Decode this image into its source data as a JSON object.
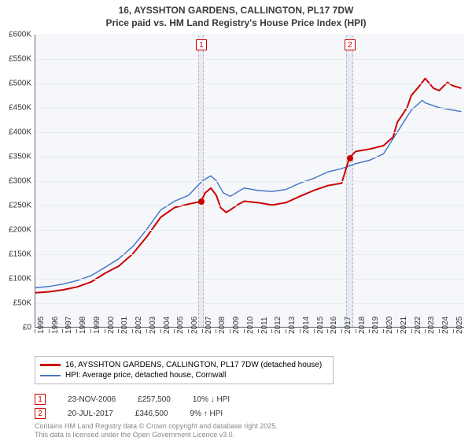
{
  "title": {
    "line1": "16, AYSSHTON GARDENS, CALLINGTON, PL17 7DW",
    "line2": "Price paid vs. HM Land Registry's House Price Index (HPI)"
  },
  "chart": {
    "type": "line",
    "background_color": "#f5f7fa",
    "grid_color": "#e8ecef",
    "axis_color": "#666666",
    "ylim": [
      0,
      600000
    ],
    "ytick_step": 50000,
    "y_tick_labels": [
      "£0",
      "£50K",
      "£100K",
      "£150K",
      "£200K",
      "£250K",
      "£300K",
      "£350K",
      "£400K",
      "£450K",
      "£500K",
      "£550K",
      "£600K"
    ],
    "xlim": [
      1995,
      2025.8
    ],
    "x_tick_labels": [
      "1995",
      "1996",
      "1997",
      "1998",
      "1999",
      "2000",
      "2001",
      "2002",
      "2003",
      "2004",
      "2005",
      "2006",
      "2007",
      "2008",
      "2009",
      "2010",
      "2011",
      "2012",
      "2013",
      "2014",
      "2015",
      "2016",
      "2017",
      "2018",
      "2019",
      "2020",
      "2021",
      "2022",
      "2023",
      "2024",
      "2025"
    ],
    "series": [
      {
        "name": "price_paid",
        "label": "16, AYSSHTON GARDENS, CALLINGTON, PL17 7DW (detached house)",
        "color": "#cc0000",
        "width": 2,
        "points": [
          [
            1995,
            70000
          ],
          [
            1996,
            72000
          ],
          [
            1997,
            76000
          ],
          [
            1998,
            82000
          ],
          [
            1999,
            92000
          ],
          [
            2000,
            110000
          ],
          [
            2001,
            125000
          ],
          [
            2002,
            150000
          ],
          [
            2003,
            185000
          ],
          [
            2004,
            225000
          ],
          [
            2005,
            245000
          ],
          [
            2006,
            252000
          ],
          [
            2006.9,
            257500
          ],
          [
            2007.2,
            275000
          ],
          [
            2007.6,
            285000
          ],
          [
            2008,
            270000
          ],
          [
            2008.3,
            245000
          ],
          [
            2008.7,
            235000
          ],
          [
            2009,
            240000
          ],
          [
            2009.5,
            250000
          ],
          [
            2010,
            258000
          ],
          [
            2011,
            255000
          ],
          [
            2012,
            250000
          ],
          [
            2013,
            255000
          ],
          [
            2014,
            268000
          ],
          [
            2015,
            280000
          ],
          [
            2016,
            290000
          ],
          [
            2017,
            295000
          ],
          [
            2017.55,
            346500
          ],
          [
            2018,
            360000
          ],
          [
            2019,
            365000
          ],
          [
            2020,
            372000
          ],
          [
            2020.7,
            390000
          ],
          [
            2021,
            420000
          ],
          [
            2021.7,
            450000
          ],
          [
            2022,
            475000
          ],
          [
            2022.6,
            495000
          ],
          [
            2023,
            510000
          ],
          [
            2023.6,
            490000
          ],
          [
            2024,
            485000
          ],
          [
            2024.6,
            502000
          ],
          [
            2025,
            495000
          ],
          [
            2025.6,
            490000
          ]
        ]
      },
      {
        "name": "hpi",
        "label": "HPI: Average price, detached house, Cornwall",
        "color": "#4a7ac8",
        "width": 1.5,
        "points": [
          [
            1995,
            80000
          ],
          [
            1996,
            83000
          ],
          [
            1997,
            88000
          ],
          [
            1998,
            95000
          ],
          [
            1999,
            105000
          ],
          [
            2000,
            122000
          ],
          [
            2001,
            140000
          ],
          [
            2002,
            165000
          ],
          [
            2003,
            200000
          ],
          [
            2004,
            240000
          ],
          [
            2005,
            258000
          ],
          [
            2006,
            270000
          ],
          [
            2007,
            300000
          ],
          [
            2007.6,
            310000
          ],
          [
            2008,
            300000
          ],
          [
            2008.5,
            275000
          ],
          [
            2009,
            268000
          ],
          [
            2010,
            285000
          ],
          [
            2011,
            280000
          ],
          [
            2012,
            278000
          ],
          [
            2013,
            282000
          ],
          [
            2014,
            295000
          ],
          [
            2015,
            305000
          ],
          [
            2016,
            318000
          ],
          [
            2017,
            325000
          ],
          [
            2018,
            335000
          ],
          [
            2019,
            342000
          ],
          [
            2020,
            355000
          ],
          [
            2021,
            400000
          ],
          [
            2022,
            445000
          ],
          [
            2022.8,
            465000
          ],
          [
            2023,
            460000
          ],
          [
            2024,
            450000
          ],
          [
            2025,
            445000
          ],
          [
            2025.6,
            442000
          ]
        ]
      }
    ],
    "sales": [
      {
        "badge": "1",
        "band_start": 2006.7,
        "band_end": 2007.1,
        "marker_x": 2006.9,
        "marker_y": 257500,
        "date": "23-NOV-2006",
        "price": "£257,500",
        "delta": "10% ↓ HPI"
      },
      {
        "badge": "2",
        "band_start": 2017.3,
        "band_end": 2017.8,
        "marker_x": 2017.55,
        "marker_y": 346500,
        "date": "20-JUL-2017",
        "price": "£346,500",
        "delta": "9% ↑ HPI"
      }
    ]
  },
  "legend": {
    "rows": [
      {
        "color": "#cc0000",
        "width": 3,
        "key": "chart.series.0.label"
      },
      {
        "color": "#4a7ac8",
        "width": 2,
        "key": "chart.series.1.label"
      }
    ]
  },
  "footnote": {
    "line1": "Contains HM Land Registry data © Crown copyright and database right 2025.",
    "line2": "This data is licensed under the Open Government Licence v3.0."
  }
}
